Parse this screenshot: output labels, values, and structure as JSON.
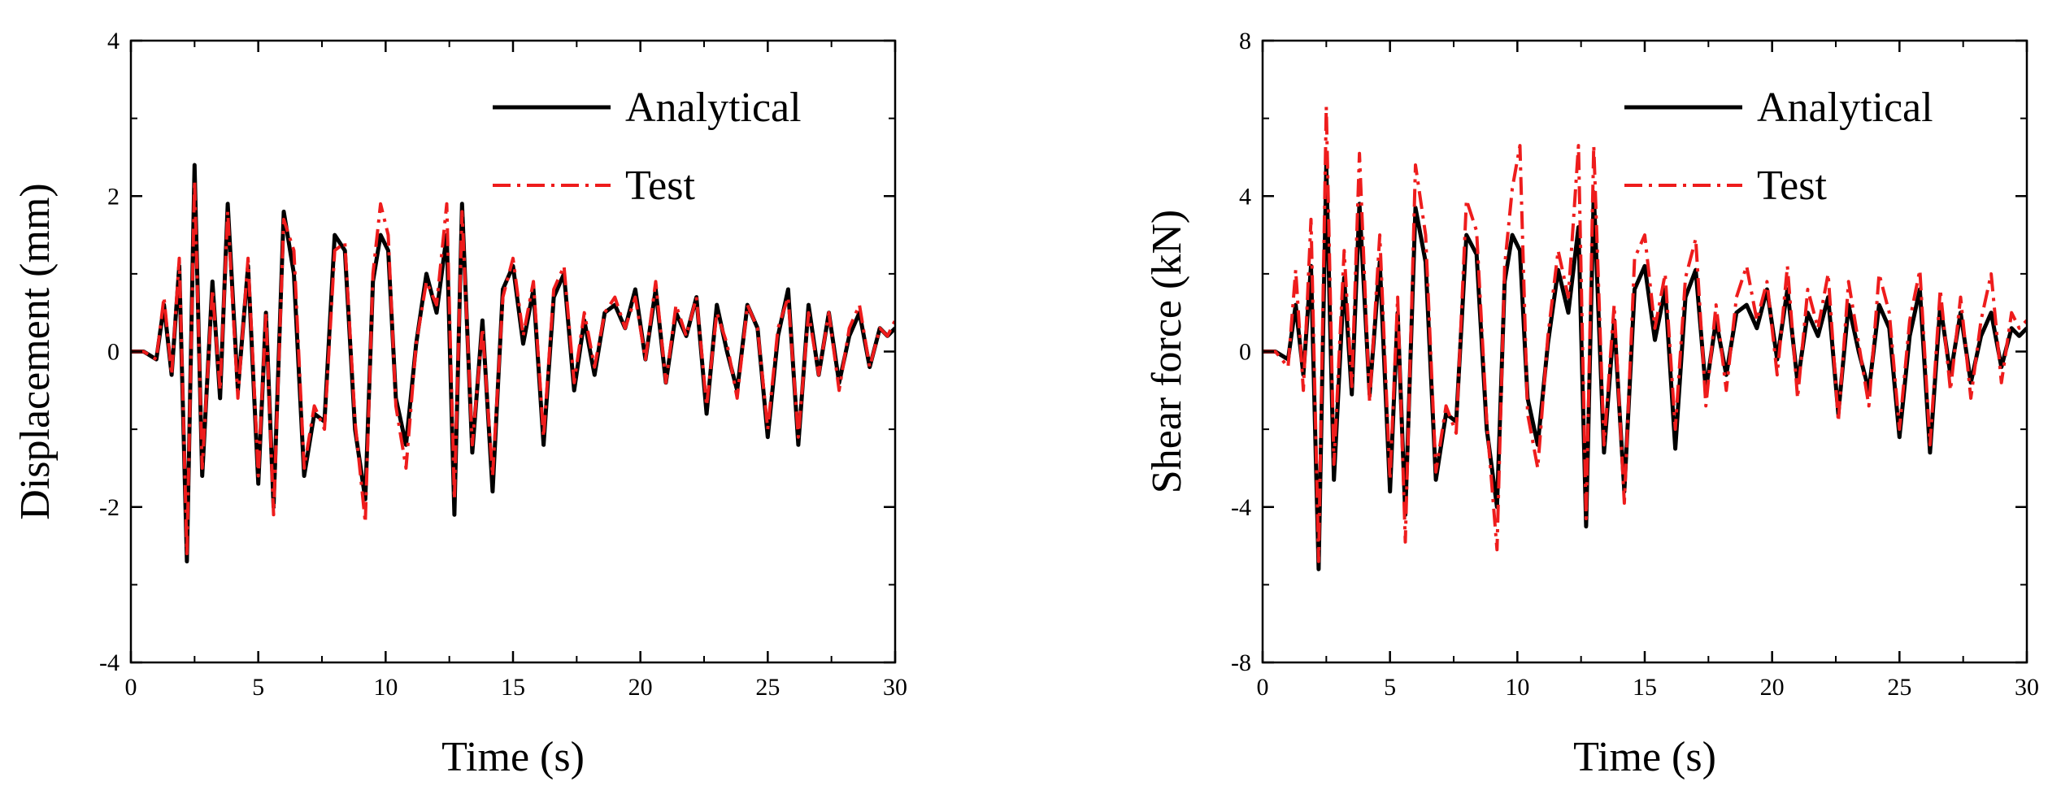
{
  "chart_data": [
    {
      "type": "line",
      "xlabel": "Time (s)",
      "ylabel": "Displacement (mm)",
      "xlim": [
        0,
        30
      ],
      "ylim": [
        -4,
        4
      ],
      "xticks": [
        0,
        5,
        10,
        15,
        20,
        25,
        30
      ],
      "xtick_labels": [
        "0",
        "5",
        "10",
        "15",
        "20",
        "25",
        "30"
      ],
      "yticks": [
        -4,
        -2,
        0,
        2,
        4
      ],
      "ytick_labels": [
        "-4",
        "-2",
        "0",
        "2",
        "4"
      ],
      "legend_position": "top-right",
      "series": [
        {
          "name": "Analytical",
          "color": "#000000",
          "style": "solid",
          "x": [
            0,
            0.5,
            1.0,
            1.3,
            1.6,
            1.9,
            2.2,
            2.5,
            2.8,
            3.2,
            3.5,
            3.8,
            4.2,
            4.6,
            5.0,
            5.3,
            5.6,
            6.0,
            6.4,
            6.8,
            7.2,
            7.6,
            8.0,
            8.4,
            8.8,
            9.2,
            9.5,
            9.8,
            10.1,
            10.4,
            10.8,
            11.2,
            11.6,
            12.0,
            12.4,
            12.7,
            13.0,
            13.4,
            13.8,
            14.2,
            14.6,
            15.0,
            15.4,
            15.8,
            16.2,
            16.6,
            17.0,
            17.4,
            17.8,
            18.2,
            18.6,
            19.0,
            19.4,
            19.8,
            20.2,
            20.6,
            21.0,
            21.4,
            21.8,
            22.2,
            22.6,
            23.0,
            23.4,
            23.8,
            24.2,
            24.6,
            25.0,
            25.4,
            25.8,
            26.2,
            26.6,
            27.0,
            27.4,
            27.8,
            28.2,
            28.6,
            29.0,
            29.4,
            29.7,
            30.0
          ],
          "y": [
            0,
            0,
            -0.1,
            0.6,
            -0.3,
            1.1,
            -2.7,
            2.4,
            -1.6,
            0.9,
            -0.6,
            1.9,
            -0.5,
            1.1,
            -1.7,
            0.5,
            -2.0,
            1.8,
            1.0,
            -1.6,
            -0.8,
            -0.9,
            1.5,
            1.3,
            -1.0,
            -1.9,
            0.9,
            1.5,
            1.3,
            -0.6,
            -1.2,
            0.1,
            1.0,
            0.5,
            1.5,
            -2.1,
            1.9,
            -1.3,
            0.4,
            -1.8,
            0.8,
            1.1,
            0.1,
            0.8,
            -1.2,
            0.7,
            1.0,
            -0.5,
            0.4,
            -0.3,
            0.5,
            0.6,
            0.3,
            0.8,
            -0.1,
            0.8,
            -0.4,
            0.5,
            0.2,
            0.7,
            -0.8,
            0.6,
            0.0,
            -0.5,
            0.6,
            0.3,
            -1.1,
            0.2,
            0.8,
            -1.2,
            0.6,
            -0.3,
            0.5,
            -0.4,
            0.2,
            0.5,
            -0.2,
            0.3,
            0.2,
            0.3
          ]
        },
        {
          "name": "Test",
          "color": "#ee1c1c",
          "style": "dash-dot",
          "x": [
            0,
            0.5,
            1.0,
            1.3,
            1.6,
            1.9,
            2.2,
            2.5,
            2.8,
            3.2,
            3.5,
            3.8,
            4.2,
            4.6,
            5.0,
            5.3,
            5.6,
            6.0,
            6.4,
            6.8,
            7.2,
            7.6,
            8.0,
            8.4,
            8.8,
            9.2,
            9.5,
            9.8,
            10.1,
            10.4,
            10.8,
            11.2,
            11.6,
            12.0,
            12.4,
            12.7,
            13.0,
            13.4,
            13.8,
            14.2,
            14.6,
            15.0,
            15.4,
            15.8,
            16.2,
            16.6,
            17.0,
            17.4,
            17.8,
            18.2,
            18.6,
            19.0,
            19.4,
            19.8,
            20.2,
            20.6,
            21.0,
            21.4,
            21.8,
            22.2,
            22.6,
            23.0,
            23.4,
            23.8,
            24.2,
            24.6,
            25.0,
            25.4,
            25.8,
            26.2,
            26.6,
            27.0,
            27.4,
            27.8,
            28.2,
            28.6,
            29.0,
            29.4,
            29.7,
            30.0
          ],
          "y": [
            0,
            0,
            -0.1,
            0.7,
            -0.3,
            1.2,
            -2.6,
            2.2,
            -1.5,
            0.8,
            -0.5,
            1.8,
            -0.6,
            1.2,
            -1.6,
            0.5,
            -2.1,
            1.7,
            1.3,
            -1.5,
            -0.7,
            -1.0,
            1.3,
            1.4,
            -0.9,
            -2.2,
            1.0,
            1.9,
            1.5,
            -0.7,
            -1.5,
            0.1,
            0.9,
            0.6,
            1.9,
            -1.9,
            1.8,
            -1.2,
            0.3,
            -1.6,
            0.7,
            1.2,
            0.2,
            0.9,
            -1.1,
            0.8,
            1.1,
            -0.4,
            0.5,
            -0.2,
            0.5,
            0.7,
            0.3,
            0.7,
            -0.1,
            0.9,
            -0.4,
            0.6,
            0.2,
            0.7,
            -0.7,
            0.5,
            0.1,
            -0.6,
            0.6,
            0.3,
            -1.0,
            0.3,
            0.7,
            -1.1,
            0.5,
            -0.3,
            0.5,
            -0.5,
            0.3,
            0.6,
            -0.2,
            0.3,
            0.2,
            0.4
          ]
        }
      ]
    },
    {
      "type": "line",
      "xlabel": "Time (s)",
      "ylabel": "Shear force (kN)",
      "xlim": [
        0,
        30
      ],
      "ylim": [
        -8,
        8
      ],
      "xticks": [
        0,
        5,
        10,
        15,
        20,
        25,
        30
      ],
      "xtick_labels": [
        "0",
        "5",
        "10",
        "15",
        "20",
        "25",
        "30"
      ],
      "yticks": [
        -8,
        -4,
        0,
        4,
        8
      ],
      "ytick_labels": [
        "-8",
        "-4",
        "0",
        "4",
        "8"
      ],
      "legend_position": "top-right",
      "series": [
        {
          "name": "Analytical",
          "color": "#000000",
          "style": "solid",
          "x": [
            0,
            0.5,
            1.0,
            1.3,
            1.6,
            1.9,
            2.2,
            2.5,
            2.8,
            3.2,
            3.5,
            3.8,
            4.2,
            4.6,
            5.0,
            5.3,
            5.6,
            6.0,
            6.4,
            6.8,
            7.2,
            7.6,
            8.0,
            8.4,
            8.8,
            9.2,
            9.5,
            9.8,
            10.1,
            10.4,
            10.8,
            11.2,
            11.6,
            12.0,
            12.4,
            12.7,
            13.0,
            13.4,
            13.8,
            14.2,
            14.6,
            15.0,
            15.4,
            15.8,
            16.2,
            16.6,
            17.0,
            17.4,
            17.8,
            18.2,
            18.6,
            19.0,
            19.4,
            19.8,
            20.2,
            20.6,
            21.0,
            21.4,
            21.8,
            22.2,
            22.6,
            23.0,
            23.4,
            23.8,
            24.2,
            24.6,
            25.0,
            25.4,
            25.8,
            26.2,
            26.6,
            27.0,
            27.4,
            27.8,
            28.2,
            28.6,
            29.0,
            29.4,
            29.7,
            30.0
          ],
          "y": [
            0,
            0,
            -0.2,
            1.2,
            -0.6,
            2.2,
            -5.6,
            4.8,
            -3.3,
            1.9,
            -1.1,
            3.8,
            -1.1,
            2.3,
            -3.6,
            1.0,
            -4.2,
            3.7,
            2.3,
            -3.3,
            -1.6,
            -1.8,
            3.0,
            2.5,
            -2.0,
            -4.0,
            1.8,
            3.0,
            2.6,
            -1.2,
            -2.4,
            0.2,
            2.1,
            1.0,
            3.2,
            -4.5,
            4.1,
            -2.6,
            0.8,
            -3.6,
            1.6,
            2.2,
            0.3,
            1.6,
            -2.5,
            1.4,
            2.1,
            -1.0,
            0.8,
            -0.6,
            1.0,
            1.2,
            0.6,
            1.6,
            -0.2,
            1.6,
            -0.8,
            1.0,
            0.4,
            1.4,
            -1.6,
            1.2,
            0.0,
            -1.0,
            1.2,
            0.6,
            -2.2,
            0.4,
            1.6,
            -2.6,
            1.2,
            -0.6,
            1.0,
            -0.8,
            0.4,
            1.0,
            -0.4,
            0.6,
            0.4,
            0.6
          ]
        },
        {
          "name": "Test",
          "color": "#ee1c1c",
          "style": "dash-dot",
          "x": [
            0,
            0.5,
            1.0,
            1.3,
            1.6,
            1.9,
            2.2,
            2.5,
            2.8,
            3.2,
            3.5,
            3.8,
            4.2,
            4.6,
            5.0,
            5.3,
            5.6,
            6.0,
            6.4,
            6.8,
            7.2,
            7.6,
            8.0,
            8.4,
            8.8,
            9.2,
            9.5,
            9.8,
            10.1,
            10.4,
            10.8,
            11.2,
            11.6,
            12.0,
            12.4,
            12.7,
            13.0,
            13.4,
            13.8,
            14.2,
            14.6,
            15.0,
            15.4,
            15.8,
            16.2,
            16.6,
            17.0,
            17.4,
            17.8,
            18.2,
            18.6,
            19.0,
            19.4,
            19.8,
            20.2,
            20.6,
            21.0,
            21.4,
            21.8,
            22.2,
            22.6,
            23.0,
            23.4,
            23.8,
            24.2,
            24.6,
            25.0,
            25.4,
            25.8,
            26.2,
            26.6,
            27.0,
            27.4,
            27.8,
            28.2,
            28.6,
            29.0,
            29.4,
            29.7,
            30.0
          ],
          "y": [
            0,
            0,
            -0.4,
            2.1,
            -1.0,
            3.4,
            -5.4,
            6.3,
            -2.9,
            2.6,
            -0.9,
            5.1,
            -1.3,
            3.0,
            -3.3,
            1.4,
            -4.9,
            4.8,
            3.0,
            -3.1,
            -1.4,
            -2.1,
            3.9,
            3.1,
            -1.8,
            -5.1,
            2.2,
            4.2,
            5.3,
            -1.6,
            -3.0,
            0.4,
            2.6,
            1.4,
            5.3,
            -4.3,
            5.3,
            -2.4,
            1.2,
            -3.9,
            2.4,
            3.0,
            0.6,
            2.0,
            -2.0,
            1.9,
            2.9,
            -1.4,
            1.2,
            -1.0,
            1.4,
            2.2,
            0.8,
            1.8,
            -0.6,
            2.2,
            -1.2,
            1.6,
            0.6,
            2.0,
            -1.8,
            1.8,
            0.2,
            -1.4,
            2.0,
            1.0,
            -2.0,
            0.8,
            2.1,
            -2.4,
            1.6,
            -1.0,
            1.4,
            -1.2,
            0.8,
            2.0,
            -0.8,
            1.0,
            0.6,
            0.8
          ]
        }
      ]
    }
  ]
}
